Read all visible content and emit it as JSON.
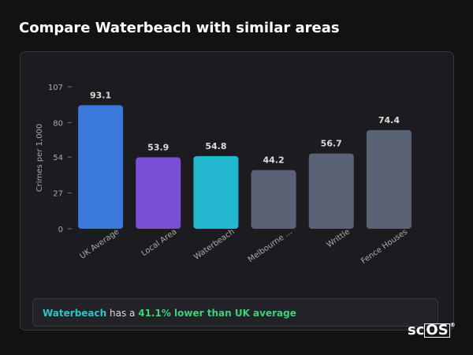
{
  "heading": "Compare Waterbeach with similar areas",
  "chart_data": {
    "type": "bar",
    "ylabel": "Crimes per 1,000",
    "categories": [
      "UK Average",
      "Local Area",
      "Waterbeach",
      "Melbourne ...",
      "Writtle",
      "Fence Houses"
    ],
    "values": [
      93.1,
      53.9,
      54.8,
      44.2,
      56.7,
      74.4
    ],
    "colors": [
      "#3a78de",
      "#7a4fd8",
      "#22b9d0",
      "#5a6375",
      "#5a6375",
      "#5a6375"
    ],
    "ylim": [
      0,
      107
    ],
    "yticks": [
      0,
      27,
      54,
      80,
      107
    ],
    "grid": false
  },
  "summary": {
    "area": "Waterbeach",
    "text": "has a",
    "comparison": "41.1% lower than UK average"
  },
  "logo": {
    "left": "sc",
    "boxed": "OS",
    "mark": "®"
  }
}
